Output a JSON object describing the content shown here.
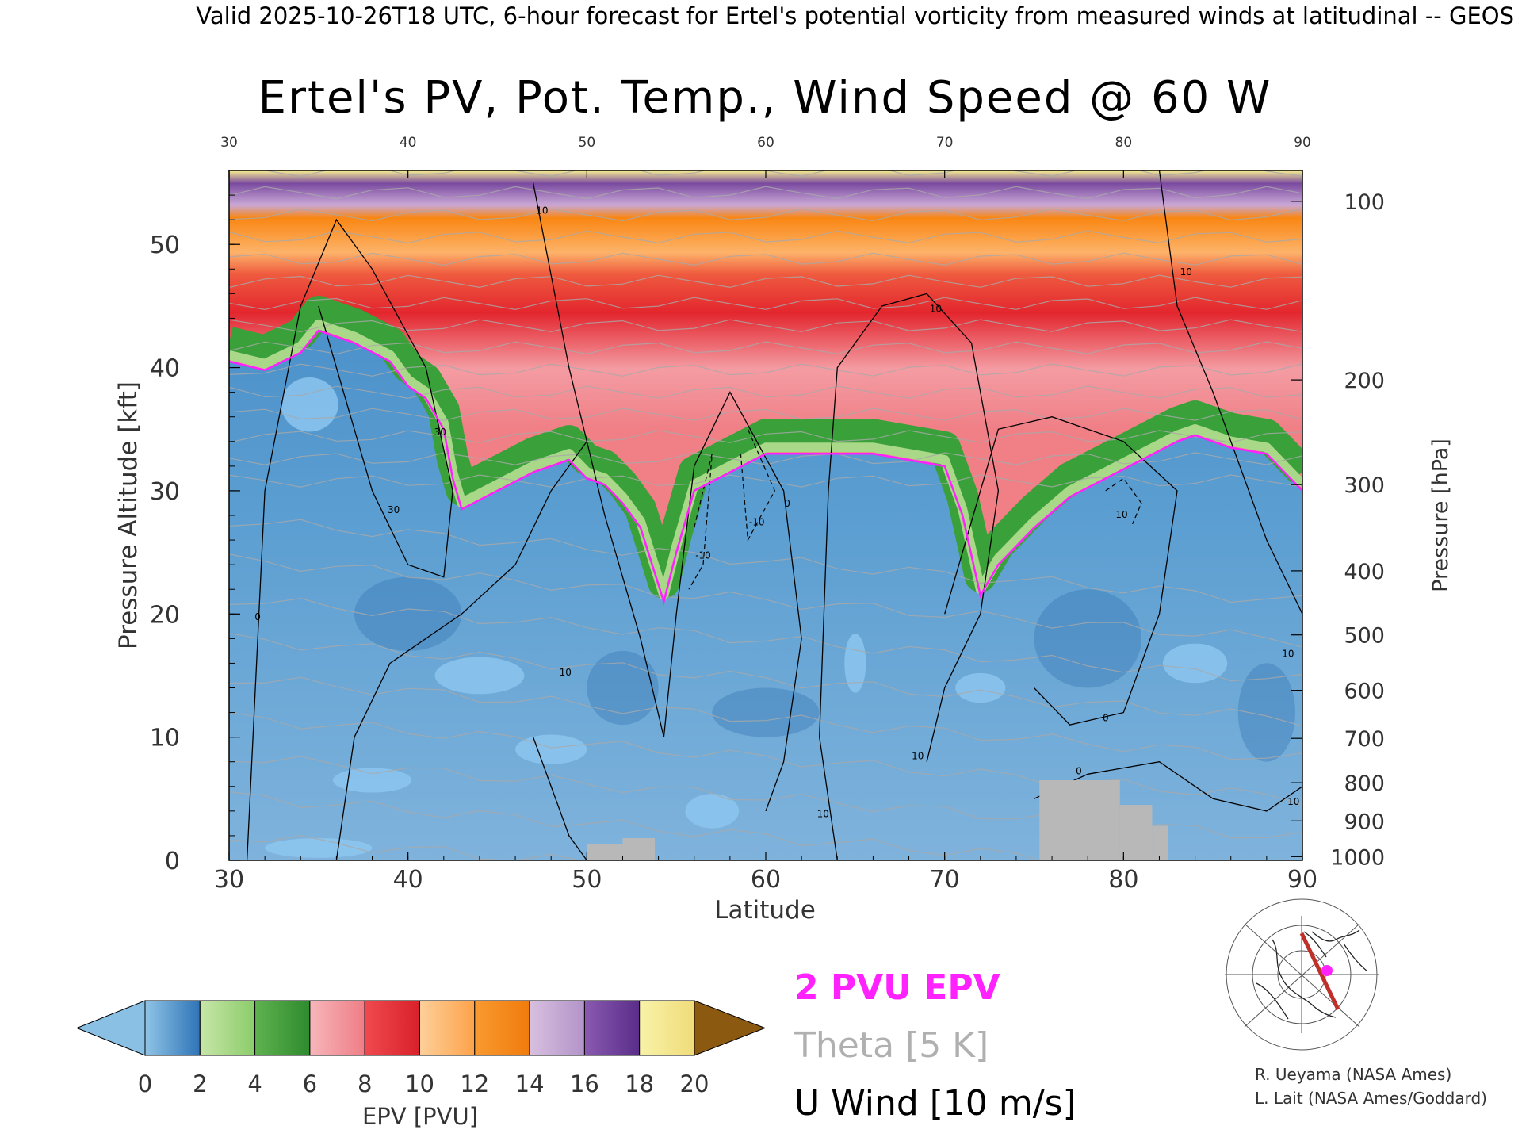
{
  "header": {
    "valid_line": "Valid 2025-10-26T18 UTC, 6-hour forecast for Ertel's potential vorticity from measured winds at latitudinal -- GEOS",
    "title": "Ertel's PV, Pot. Temp., Wind Speed @ 60 W"
  },
  "credits": {
    "line1": "R. Ueyama (NASA Ames)",
    "line2": "L. Lait (NASA Ames/Goddard)"
  },
  "legend": {
    "pvu": "2 PVU EPV",
    "theta": "Theta [5 K]",
    "uwind": "U Wind [10 m/s]",
    "colors": {
      "pvu": "#ff22ff",
      "theta": "#b0b0b0",
      "uwind": "#000000"
    }
  },
  "chart_data": {
    "type": "heatmap",
    "title": "Ertel's PV, Pot. Temp., Wind Speed @ 60 W",
    "xlabel": "Latitude",
    "ylabel": "Pressure Altitude [kft]",
    "y2label": "Pressure [hPa]",
    "xlim": [
      30,
      90
    ],
    "ylim": [
      0,
      56
    ],
    "x_ticks": [
      "30",
      "40",
      "50",
      "60",
      "70",
      "80",
      "90"
    ],
    "x_ticks_top": [
      "30",
      "40",
      "50",
      "60",
      "70",
      "80",
      "90"
    ],
    "y_ticks": [
      "0",
      "10",
      "20",
      "30",
      "40",
      "50"
    ],
    "pressure_ticks": [
      {
        "label": "100",
        "kft": 53.5
      },
      {
        "label": "200",
        "kft": 39.0
      },
      {
        "label": "300",
        "kft": 30.5
      },
      {
        "label": "400",
        "kft": 23.5
      },
      {
        "label": "500",
        "kft": 18.3
      },
      {
        "label": "600",
        "kft": 13.8
      },
      {
        "label": "700",
        "kft": 9.9
      },
      {
        "label": "800",
        "kft": 6.3
      },
      {
        "label": "900",
        "kft": 3.2
      },
      {
        "label": "1000",
        "kft": 0.3
      }
    ],
    "tropopause_2pvu": {
      "lat": [
        30,
        32,
        34,
        35,
        37,
        39,
        40,
        41,
        42,
        42.5,
        43,
        45,
        47,
        49,
        50,
        51,
        52,
        53,
        54.3,
        55,
        56,
        58,
        60,
        62,
        64,
        66,
        68,
        70,
        71,
        72,
        73,
        75,
        77,
        79,
        81,
        83,
        84,
        86,
        88,
        90
      ],
      "kft": [
        40.5,
        39.8,
        41.2,
        43,
        42,
        40.5,
        38.5,
        37.5,
        35,
        31,
        28.5,
        30,
        31.5,
        32.5,
        31,
        30.5,
        29,
        27,
        21,
        25,
        30,
        31.5,
        33,
        33,
        33,
        33,
        32.5,
        32,
        28,
        21.5,
        24,
        27,
        29.5,
        31,
        32.5,
        34,
        34.5,
        33.5,
        33,
        30
      ]
    },
    "pv_surface_blocks": [
      {
        "lat": [
          75.3,
          79.8
        ],
        "kft_top": 6.5
      },
      {
        "lat": [
          79.8,
          81.6
        ],
        "kft_top": 4.5
      },
      {
        "lat": [
          81.6,
          82.5
        ],
        "kft_top": 2.8
      },
      {
        "lat": [
          50,
          52
        ],
        "kft_top": 1.3
      },
      {
        "lat": [
          52,
          53.8
        ],
        "kft_top": 1.8
      }
    ],
    "contour_labels": [
      {
        "text": "10",
        "lat": 47.5,
        "kft": 52.5
      },
      {
        "text": "10",
        "lat": 69.5,
        "kft": 44.5
      },
      {
        "text": "10",
        "lat": 83.5,
        "kft": 47.5
      },
      {
        "text": "30",
        "lat": 41.8,
        "kft": 34.5
      },
      {
        "text": "30",
        "lat": 39.2,
        "kft": 28.2
      },
      {
        "text": "0",
        "lat": 31.6,
        "kft": 19.5
      },
      {
        "text": "10",
        "lat": 48.8,
        "kft": 15
      },
      {
        "text": "-10",
        "lat": 56.5,
        "kft": 24.5
      },
      {
        "text": "-10",
        "lat": 59.5,
        "kft": 27.2
      },
      {
        "text": "0",
        "lat": 61.2,
        "kft": 28.7
      },
      {
        "text": "-10",
        "lat": 79.8,
        "kft": 27.8
      },
      {
        "text": "0",
        "lat": 79.0,
        "kft": 11.3
      },
      {
        "text": "10",
        "lat": 68.5,
        "kft": 8.2
      },
      {
        "text": "10",
        "lat": 63.2,
        "kft": 3.5
      },
      {
        "text": "10",
        "lat": 89.2,
        "kft": 16.5
      },
      {
        "text": "10",
        "lat": 89.5,
        "kft": 4.5
      },
      {
        "text": "0",
        "lat": 77.5,
        "kft": 7
      }
    ]
  },
  "colorbar": {
    "label": "EPV [PVU]",
    "ticks": [
      "0",
      "2",
      "4",
      "6",
      "8",
      "10",
      "12",
      "14",
      "16",
      "18",
      "20"
    ],
    "colors": [
      "#89c0e4",
      "#2f74b8",
      "#9fd57a",
      "#3a9d3a",
      "#f49ca3",
      "#e3262e",
      "#fdb36a",
      "#f98613",
      "#c7a8d3",
      "#6a3d9a",
      "#f4ee8e",
      "#8b5a10"
    ]
  }
}
